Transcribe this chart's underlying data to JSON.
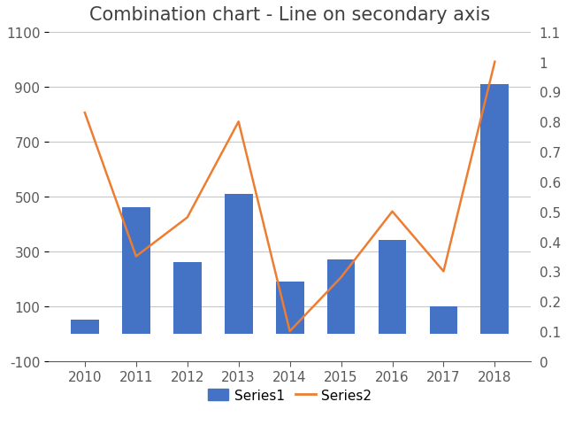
{
  "title": "Combination chart - Line on secondary axis",
  "categories": [
    "2010",
    "2011",
    "2012",
    "2013",
    "2014",
    "2015",
    "2016",
    "2017",
    "2018"
  ],
  "series1": [
    50,
    460,
    260,
    510,
    190,
    270,
    340,
    100,
    910
  ],
  "series2": [
    0.83,
    0.35,
    0.48,
    0.8,
    0.1,
    0.28,
    0.5,
    0.3,
    1.0
  ],
  "bar_color": "#4472C4",
  "line_color": "#ED7D31",
  "left_ylim": [
    -100,
    1100
  ],
  "right_ylim": [
    0,
    1.1
  ],
  "left_yticks": [
    -100,
    100,
    300,
    500,
    700,
    900,
    1100
  ],
  "left_yticklabels": [
    "-100",
    "100",
    "300",
    "500",
    "700",
    "900",
    "1100"
  ],
  "right_yticks": [
    0,
    0.1,
    0.2,
    0.3,
    0.4,
    0.5,
    0.6,
    0.7,
    0.8,
    0.9,
    1.0,
    1.1
  ],
  "right_yticklabels": [
    "0",
    "0.1",
    "0.2",
    "0.3",
    "0.4",
    "0.5",
    "0.6",
    "0.7",
    "0.8",
    "0.9",
    "1",
    "1.1"
  ],
  "title_color": "#404040",
  "title_fontsize": 15,
  "legend_label1": "Series1",
  "legend_label2": "Series2",
  "background_color": "#ffffff",
  "grid_color": "#c8c8c8",
  "tick_color": "#595959",
  "label_fontsize": 11
}
